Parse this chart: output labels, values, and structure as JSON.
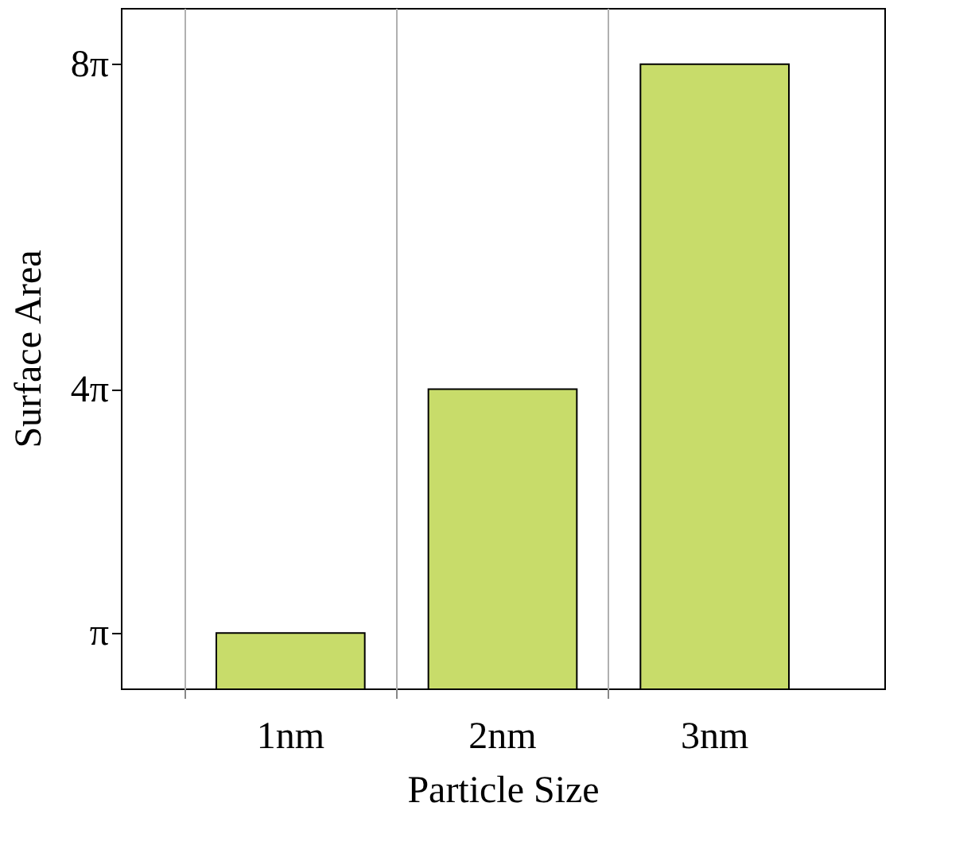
{
  "chart_data": {
    "type": "bar",
    "xlabel": "Particle Size",
    "ylabel": "Surface Area",
    "categories": [
      "1nm",
      "2nm",
      "3nm"
    ],
    "values": [
      3.14,
      12.57,
      25.13
    ],
    "color": "#c8dc6a",
    "ylim": [
      1.0,
      27.3
    ],
    "yticks": [
      {
        "value": 3.14159,
        "label": "π"
      },
      {
        "value": 12.56637,
        "label": "4π"
      },
      {
        "value": 25.13274,
        "label": "8π"
      }
    ],
    "grid": "x"
  }
}
